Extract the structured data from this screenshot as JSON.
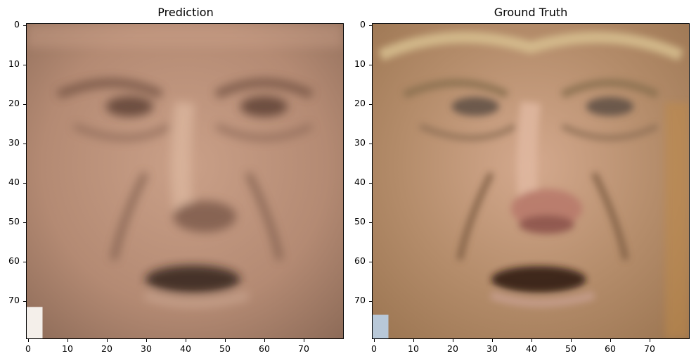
{
  "panels": [
    {
      "title": "Prediction",
      "skin_tone": "#b98f78",
      "x_ticks": [
        "0",
        "10",
        "20",
        "30",
        "40",
        "50",
        "60",
        "70"
      ],
      "y_ticks": [
        "0",
        "10",
        "20",
        "30",
        "40",
        "50",
        "60",
        "70"
      ]
    },
    {
      "title": "Ground Truth",
      "skin_tone": "#b8906e",
      "x_ticks": [
        "0",
        "10",
        "20",
        "30",
        "40",
        "50",
        "60",
        "70"
      ],
      "y_ticks": [
        "0",
        "10",
        "20",
        "30",
        "40",
        "50",
        "60",
        "70"
      ]
    }
  ],
  "image_grid_size": 80
}
